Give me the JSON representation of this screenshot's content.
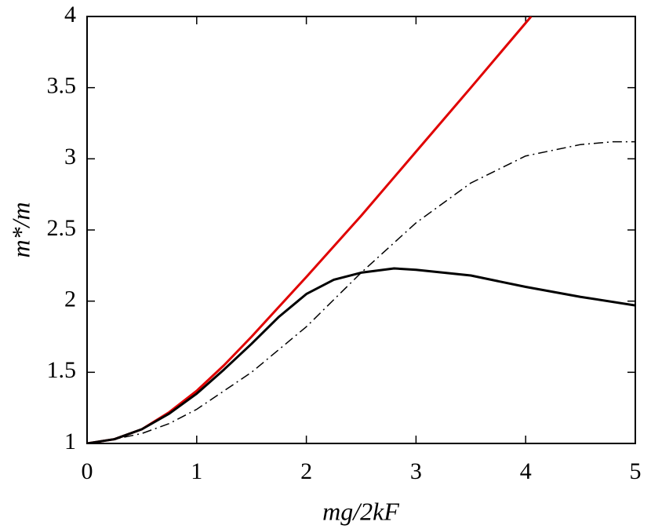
{
  "chart_data": {
    "type": "line",
    "xlabel": "mg/2kF",
    "ylabel": "m*/m",
    "xlim": [
      0,
      5
    ],
    "ylim": [
      1,
      4
    ],
    "xticks": [
      0,
      1,
      2,
      3,
      4,
      5
    ],
    "yticks": [
      1,
      1.5,
      2,
      2.5,
      3,
      3.5,
      4
    ],
    "series": [
      {
        "color": "#e00000",
        "style": "solid",
        "x": [
          0,
          0.25,
          0.5,
          0.75,
          1,
          1.25,
          1.5,
          1.75,
          2,
          2.5,
          3,
          3.5,
          4.05
        ],
        "values": [
          1,
          1.03,
          1.1,
          1.22,
          1.37,
          1.55,
          1.75,
          1.96,
          2.17,
          2.6,
          3.05,
          3.5,
          4
        ]
      },
      {
        "color": "#000000",
        "style": "solid",
        "x": [
          0,
          0.25,
          0.5,
          0.75,
          1,
          1.25,
          1.5,
          1.75,
          2,
          2.25,
          2.5,
          2.8,
          3,
          3.5,
          4,
          4.5,
          5
        ],
        "values": [
          1,
          1.03,
          1.1,
          1.21,
          1.35,
          1.52,
          1.7,
          1.89,
          2.05,
          2.15,
          2.2,
          2.23,
          2.22,
          2.18,
          2.1,
          2.03,
          1.97
        ]
      },
      {
        "color": "#000000",
        "style": "dashdot",
        "x": [
          0,
          0.25,
          0.5,
          0.75,
          1,
          1.5,
          2,
          2.5,
          3,
          3.5,
          4,
          4.5,
          4.8,
          5
        ],
        "values": [
          1,
          1.03,
          1.07,
          1.14,
          1.24,
          1.5,
          1.82,
          2.2,
          2.55,
          2.83,
          3.02,
          3.1,
          3.12,
          3.12
        ]
      }
    ]
  }
}
